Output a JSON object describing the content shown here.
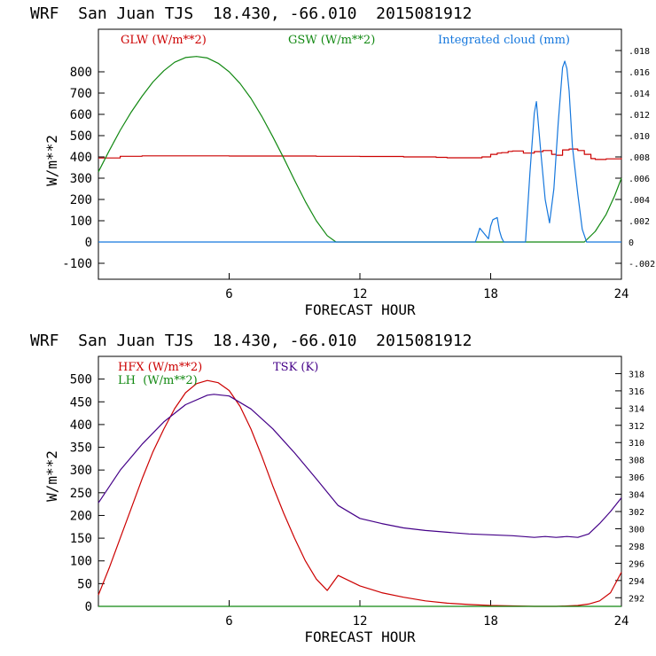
{
  "chart_data": [
    {
      "type": "line",
      "header": "WRF  San Juan TJS  18.430, -66.010  2015081912",
      "xlabel": "FORECAST HOUR",
      "ylabel": "W/m**2",
      "xlim": [
        0,
        24
      ],
      "ylim": [
        -175,
        1000
      ],
      "xticks": [
        6,
        12,
        18,
        24
      ],
      "yticks": [
        -100,
        0,
        100,
        200,
        300,
        400,
        500,
        600,
        700,
        800
      ],
      "y2lim": [
        -0.0035,
        0.02
      ],
      "y2ticks": [
        -0.002,
        0,
        0.002,
        0.004,
        0.006,
        0.008,
        0.01,
        0.012,
        0.014,
        0.016,
        0.018
      ],
      "y2ticklabels": [
        "-.002",
        "0",
        ".002",
        ".004",
        ".006",
        ".008",
        ".010",
        ".012",
        ".014",
        ".016",
        ".018"
      ],
      "legend": [
        "GLW (W/m**2)",
        "GSW (W/m**2)",
        "Integrated cloud (mm)"
      ],
      "series": [
        {
          "name": "GLW (W/m**2)",
          "color": "#cc0000",
          "axis": "left",
          "step": true,
          "x": [
            0,
            1,
            2,
            4,
            6,
            8,
            10,
            12,
            14,
            15.5,
            16,
            17.5,
            17.6,
            18.0,
            18.3,
            18.5,
            18.8,
            19.0,
            19.5,
            20.0,
            20.4,
            20.8,
            21.0,
            21.3,
            21.6,
            22.0,
            22.3,
            22.6,
            22.8,
            23.3,
            24
          ],
          "y": [
            395,
            403,
            405,
            405,
            404,
            404,
            403,
            402,
            400,
            398,
            396,
            396,
            400,
            412,
            418,
            420,
            426,
            428,
            418,
            425,
            430,
            412,
            408,
            433,
            437,
            430,
            412,
            392,
            388,
            391,
            395
          ]
        },
        {
          "name": "GSW (W/m**2)",
          "color": "#118811",
          "axis": "left",
          "x": [
            0,
            0.5,
            1,
            1.5,
            2,
            2.5,
            3,
            3.5,
            4,
            4.5,
            5,
            5.5,
            6,
            6.5,
            7,
            7.5,
            8,
            8.5,
            9,
            9.5,
            10,
            10.5,
            10.9,
            11,
            12,
            14,
            16,
            18,
            20,
            22,
            22.3,
            22.8,
            23.3,
            23.7,
            24
          ],
          "y": [
            330,
            430,
            525,
            610,
            685,
            752,
            805,
            845,
            867,
            872,
            865,
            840,
            800,
            745,
            675,
            590,
            495,
            395,
            290,
            190,
            100,
            30,
            0,
            0,
            0,
            0,
            0,
            0,
            0,
            0,
            0,
            50,
            130,
            220,
            300
          ]
        },
        {
          "name": "Integrated cloud (mm)",
          "color": "#1577dd",
          "axis": "right",
          "x": [
            0,
            17.3,
            17.5,
            17.7,
            17.9,
            18.0,
            18.1,
            18.3,
            18.4,
            18.5,
            18.6,
            19.0,
            19.6,
            19.8,
            20.0,
            20.1,
            20.3,
            20.5,
            20.7,
            20.9,
            21.1,
            21.3,
            21.4,
            21.5,
            21.6,
            21.75,
            22.0,
            22.2,
            22.4,
            24
          ],
          "y": [
            0,
            0,
            0.0013,
            0.0008,
            0.0003,
            0.0015,
            0.0021,
            0.0023,
            0.0011,
            0.0004,
            0,
            0,
            0,
            0.0065,
            0.0121,
            0.0132,
            0.0085,
            0.004,
            0.0018,
            0.005,
            0.0112,
            0.0164,
            0.017,
            0.0163,
            0.0142,
            0.009,
            0.0045,
            0.0012,
            0,
            0
          ]
        }
      ]
    },
    {
      "type": "line",
      "header": "WRF  San Juan TJS  18.430, -66.010  2015081912",
      "xlabel": "FORECAST HOUR",
      "ylabel": "W/m**2",
      "xlim": [
        0,
        24
      ],
      "ylim": [
        0,
        550
      ],
      "xticks": [
        6,
        12,
        18,
        24
      ],
      "yticks": [
        0,
        50,
        100,
        150,
        200,
        250,
        300,
        350,
        400,
        450,
        500
      ],
      "y2lim": [
        291,
        320
      ],
      "y2ticks": [
        292,
        294,
        296,
        298,
        300,
        302,
        304,
        306,
        308,
        310,
        312,
        314,
        316,
        318
      ],
      "legend": [
        "HFX (W/m**2)",
        "LH  (W/m**2)",
        "TSK (K)"
      ],
      "series": [
        {
          "name": "HFX (W/m**2)",
          "color": "#cc0000",
          "axis": "left",
          "x": [
            0,
            0.5,
            1,
            1.5,
            2,
            2.5,
            3,
            3.5,
            4,
            4.5,
            5,
            5.5,
            6,
            6.5,
            7,
            7.5,
            8,
            8.5,
            9,
            9.5,
            10,
            10.5,
            11,
            12,
            13,
            14,
            15,
            16,
            17,
            18,
            19,
            20,
            21,
            22,
            22.5,
            23,
            23.5,
            24
          ],
          "y": [
            25,
            85,
            150,
            215,
            280,
            340,
            390,
            435,
            470,
            490,
            497,
            492,
            475,
            440,
            390,
            330,
            265,
            205,
            150,
            100,
            60,
            35,
            68,
            45,
            30,
            20,
            12,
            7,
            4,
            2,
            1,
            0,
            0,
            2,
            5,
            12,
            30,
            75
          ]
        },
        {
          "name": "LH  (W/m**2)",
          "color": "#118811",
          "axis": "left",
          "x": [
            0,
            24
          ],
          "y": [
            0,
            0
          ]
        },
        {
          "name": "TSK (K)",
          "color": "#440088",
          "axis": "right",
          "x": [
            0,
            1,
            2,
            3,
            4,
            5,
            5.3,
            6,
            7,
            8,
            9,
            10,
            11,
            12,
            13,
            14,
            15,
            16,
            17,
            18,
            19,
            20,
            20.5,
            21,
            21.5,
            22,
            22.5,
            23,
            23.5,
            24
          ],
          "y": [
            303.0,
            306.8,
            309.8,
            312.4,
            314.4,
            315.5,
            315.6,
            315.4,
            313.9,
            311.6,
            308.8,
            305.8,
            302.7,
            301.2,
            300.6,
            300.1,
            299.8,
            299.6,
            299.4,
            299.3,
            299.2,
            299.0,
            299.1,
            299.0,
            299.1,
            299.0,
            299.4,
            300.6,
            302.0,
            303.6
          ]
        }
      ]
    }
  ]
}
